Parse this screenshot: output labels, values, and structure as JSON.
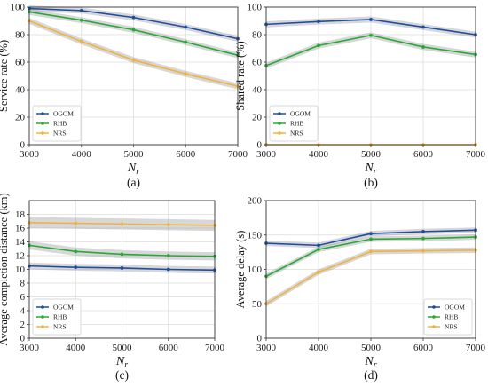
{
  "chart_data": [
    {
      "type": "line",
      "panel_label": "(a)",
      "xlabel": "N",
      "xlabel_sub": "r",
      "ylabel": "Service rate (%)",
      "x": [
        3000,
        4000,
        5000,
        6000,
        7000
      ],
      "xticks": [
        "3000",
        "4000",
        "5000",
        "6000",
        "7000"
      ],
      "xlim": [
        3000,
        7000
      ],
      "ylim": [
        0,
        100
      ],
      "yticks": [
        "0",
        "20",
        "40",
        "60",
        "80",
        "100"
      ],
      "ytick_values": [
        0,
        20,
        40,
        60,
        80,
        100
      ],
      "grid": true,
      "legend": "bottom-left",
      "series": [
        {
          "name": "OGOM",
          "color": "#1f4e9c",
          "values": [
            99,
            97.5,
            92.5,
            85.5,
            77
          ],
          "band": 2.2
        },
        {
          "name": "RHB",
          "color": "#2aa836",
          "values": [
            96.5,
            90.5,
            83.5,
            74.5,
            65
          ],
          "band": 2.2
        },
        {
          "name": "NRS",
          "color": "#f0b43c",
          "values": [
            90,
            75,
            61.5,
            51.5,
            42.5
          ],
          "band": 2.2
        }
      ]
    },
    {
      "type": "line",
      "panel_label": "(b)",
      "xlabel": "N",
      "xlabel_sub": "r",
      "ylabel": "Shared rate (%)",
      "x": [
        3000,
        4000,
        5000,
        6000,
        7000
      ],
      "xticks": [
        "3000",
        "4000",
        "5000",
        "6000",
        "7000"
      ],
      "xlim": [
        3000,
        7000
      ],
      "ylim": [
        0,
        100
      ],
      "yticks": [
        "0",
        "20",
        "40",
        "60",
        "80",
        "100"
      ],
      "ytick_values": [
        0,
        20,
        40,
        60,
        80,
        100
      ],
      "grid": true,
      "legend": "bottom-left",
      "series": [
        {
          "name": "OGOM",
          "color": "#1f4e9c",
          "values": [
            87.5,
            89.5,
            91,
            85.5,
            80
          ],
          "band": 2.2
        },
        {
          "name": "RHB",
          "color": "#2aa836",
          "values": [
            57.5,
            72,
            79.5,
            71,
            65.5
          ],
          "band": 2.2
        },
        {
          "name": "NRS",
          "color": "#f0b43c",
          "values": [
            0,
            0,
            0,
            0,
            0
          ],
          "band": 0
        }
      ]
    },
    {
      "type": "line",
      "panel_label": "(c)",
      "xlabel": "N",
      "xlabel_sub": "r",
      "ylabel": "Average completion distance (km)",
      "x": [
        3000,
        4000,
        5000,
        6000,
        7000
      ],
      "xticks": [
        "3000",
        "4000",
        "5000",
        "6000",
        "7000"
      ],
      "xlim": [
        3000,
        7000
      ],
      "ylim": [
        0,
        20
      ],
      "yticks": [
        "0",
        "2",
        "4",
        "6",
        "8",
        "10",
        "12",
        "14",
        "16",
        "18"
      ],
      "ytick_values": [
        0,
        2,
        4,
        6,
        8,
        10,
        12,
        14,
        16,
        18
      ],
      "grid": true,
      "legend": "bottom-left",
      "series": [
        {
          "name": "OGOM",
          "color": "#1f4e9c",
          "values": [
            10.5,
            10.3,
            10.2,
            10.0,
            9.9
          ],
          "band": 0.5
        },
        {
          "name": "RHB",
          "color": "#2aa836",
          "values": [
            13.5,
            12.6,
            12.2,
            12.0,
            11.9
          ],
          "band": 0.6
        },
        {
          "name": "NRS",
          "color": "#f0b43c",
          "values": [
            16.8,
            16.7,
            16.6,
            16.5,
            16.4
          ],
          "band": 0.8
        }
      ]
    },
    {
      "type": "line",
      "panel_label": "(d)",
      "xlabel": "N",
      "xlabel_sub": "r",
      "ylabel": "Average delay (s)",
      "x": [
        3000,
        4000,
        5000,
        6000,
        7000
      ],
      "xticks": [
        "3000",
        "4000",
        "5000",
        "6000",
        "7000"
      ],
      "xlim": [
        3000,
        7000
      ],
      "ylim": [
        0,
        200
      ],
      "yticks": [
        "0",
        "50",
        "100",
        "150",
        "200"
      ],
      "ytick_values": [
        0,
        50,
        100,
        150,
        200
      ],
      "grid": true,
      "legend": "bottom-right",
      "series": [
        {
          "name": "OGOM",
          "color": "#1f4e9c",
          "values": [
            138,
            135,
            152,
            155,
            157
          ],
          "band": 4
        },
        {
          "name": "RHB",
          "color": "#2aa836",
          "values": [
            90,
            129,
            144,
            145,
            147
          ],
          "band": 4
        },
        {
          "name": "NRS",
          "color": "#f0b43c",
          "values": [
            50,
            96,
            126,
            127,
            128
          ],
          "band": 4
        }
      ]
    }
  ]
}
